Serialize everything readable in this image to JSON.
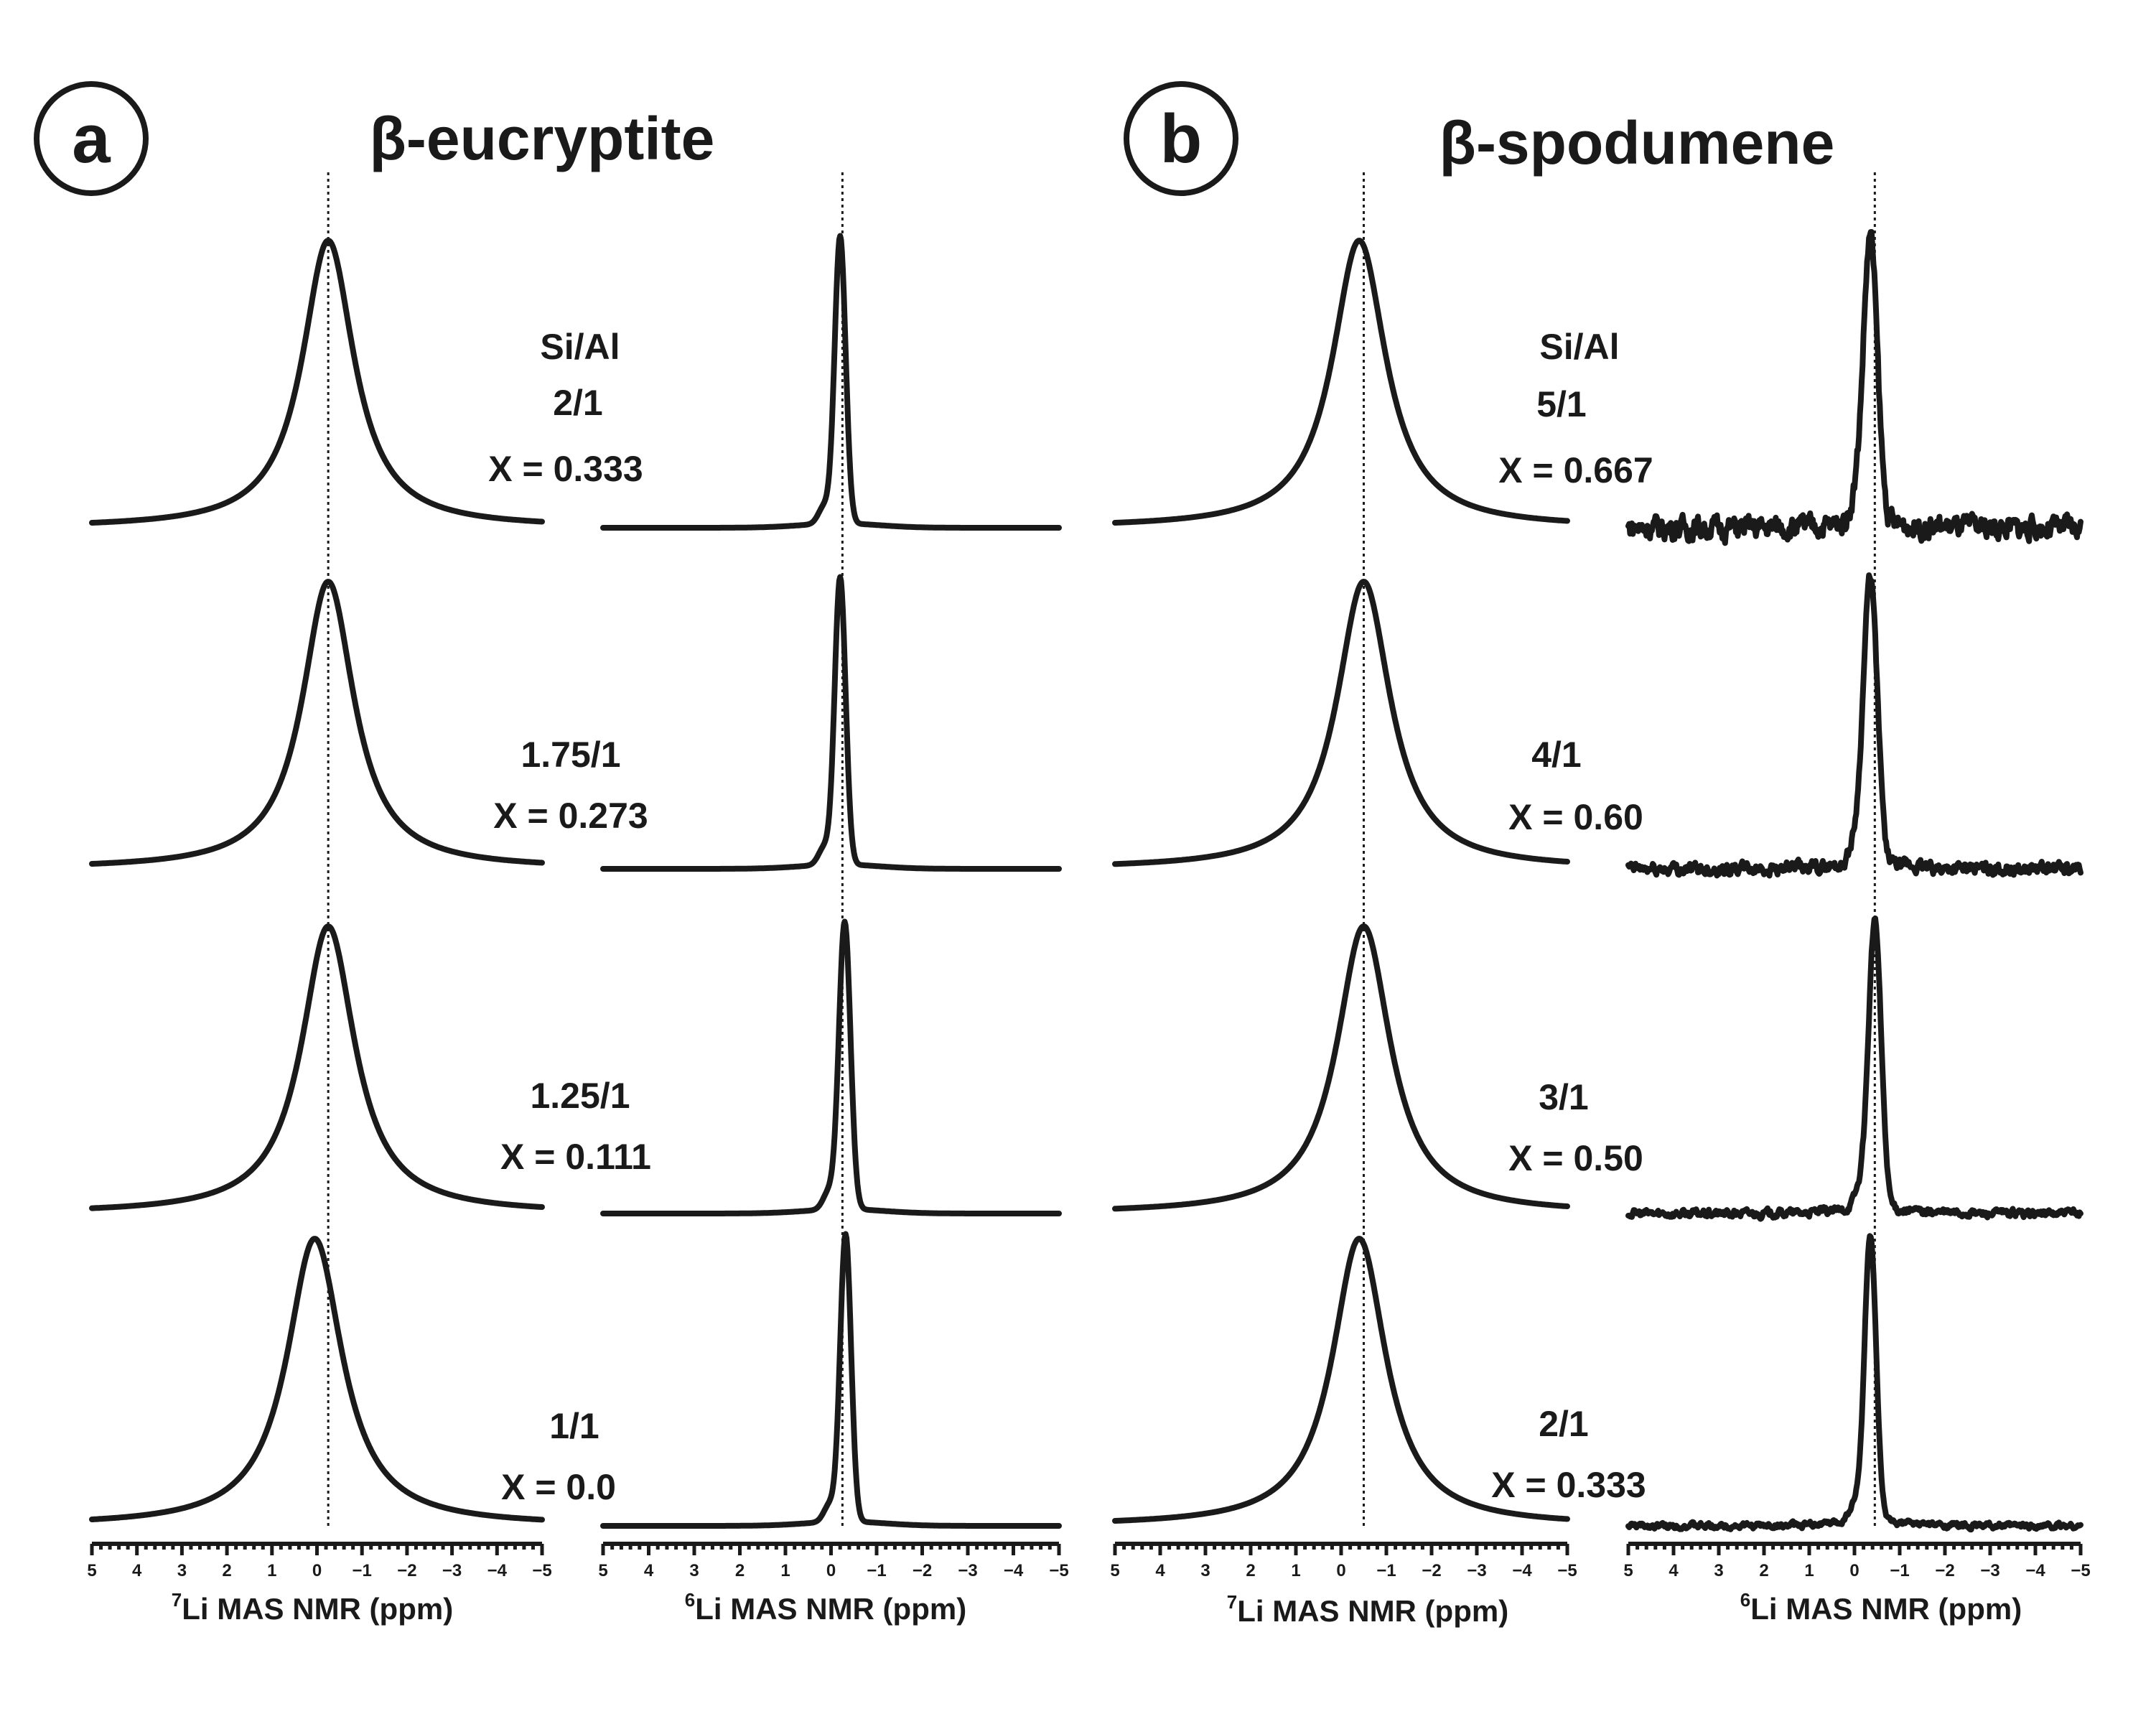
{
  "chart_data": [
    {
      "panel": "a",
      "title": "β-eucryptite",
      "type": "line",
      "xlabel_7Li": "Li MAS NMR (ppm)",
      "xlabel_6Li": "Li MAS NMR (ppm)",
      "xlabel_7Li_superscript": "7",
      "xlabel_6Li_superscript": "6",
      "xlim": [
        5,
        -5
      ],
      "x_ticks": [
        "5",
        "4",
        "3",
        "2",
        "1",
        "0",
        "−1",
        "−2",
        "−3",
        "−4",
        "−5"
      ],
      "reference_line_ppm_7Li": -0.25,
      "reference_line_ppm_6Li": -0.25,
      "spectra": [
        {
          "ratio_header": "Si/Al",
          "ratio": "2/1",
          "composition": "X = 0.333",
          "peak7_ppm": -0.25,
          "width7_ppm": 0.7,
          "peak6_ppm": -0.2,
          "width6_ppm": 0.17,
          "noise6": 0
        },
        {
          "ratio_header": "",
          "ratio": "1.75/1",
          "composition": "X = 0.273",
          "peak7_ppm": -0.25,
          "width7_ppm": 0.7,
          "peak6_ppm": -0.2,
          "width6_ppm": 0.17,
          "noise6": 0
        },
        {
          "ratio_header": "",
          "ratio": "1.25/1",
          "composition": "X = 0.111",
          "peak7_ppm": -0.25,
          "width7_ppm": 0.72,
          "peak6_ppm": -0.3,
          "width6_ppm": 0.18,
          "noise6": 0
        },
        {
          "ratio_header": "",
          "ratio": "1/1",
          "composition": "X = 0.0",
          "peak7_ppm": 0.05,
          "width7_ppm": 0.75,
          "peak6_ppm": -0.32,
          "width6_ppm": 0.17,
          "noise6": 0
        }
      ]
    },
    {
      "panel": "b",
      "title": "β-spodumene",
      "type": "line",
      "xlabel_7Li": "Li MAS NMR (ppm)",
      "xlabel_6Li": "Li MAS NMR (ppm)",
      "xlabel_7Li_superscript": "7",
      "xlabel_6Li_superscript": "6",
      "xlim": [
        5,
        -5
      ],
      "x_ticks": [
        "5",
        "4",
        "3",
        "2",
        "1",
        "0",
        "−1",
        "−2",
        "−3",
        "−4",
        "−5"
      ],
      "reference_line_ppm_7Li": -0.5,
      "reference_line_ppm_6Li": -0.45,
      "spectra": [
        {
          "ratio_header": "Si/Al",
          "ratio": "5/1",
          "composition": "X = 0.667",
          "peak7_ppm": -0.4,
          "width7_ppm": 0.72,
          "peak6_ppm": -0.35,
          "width6_ppm": 0.22,
          "noise6": 1
        },
        {
          "ratio_header": "",
          "ratio": "4/1",
          "composition": "X = 0.60",
          "peak7_ppm": -0.5,
          "width7_ppm": 0.72,
          "peak6_ppm": -0.35,
          "width6_ppm": 0.22,
          "noise6": 0.55
        },
        {
          "ratio_header": "",
          "ratio": "3/1",
          "composition": "X = 0.50",
          "peak7_ppm": -0.5,
          "width7_ppm": 0.72,
          "peak6_ppm": -0.45,
          "width6_ppm": 0.2,
          "noise6": 0.35
        },
        {
          "ratio_header": "",
          "ratio": "2/1",
          "composition": "X = 0.333",
          "peak7_ppm": -0.4,
          "width7_ppm": 0.72,
          "peak6_ppm": -0.35,
          "width6_ppm": 0.18,
          "noise6": 0.25
        }
      ]
    }
  ]
}
